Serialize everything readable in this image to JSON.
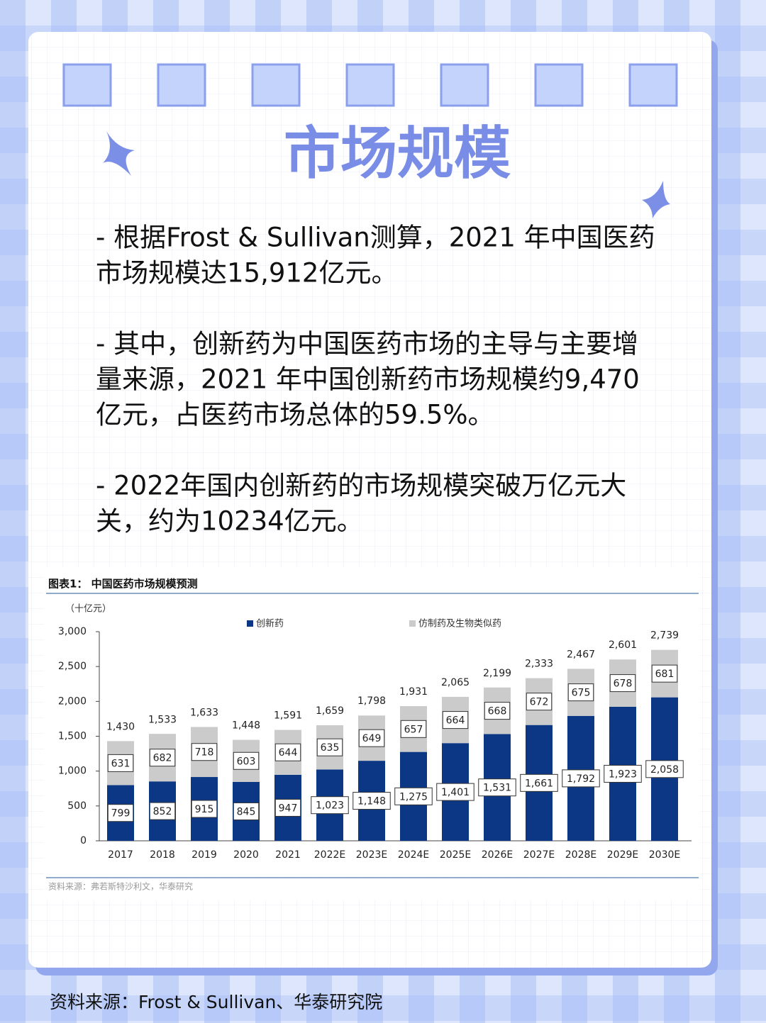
{
  "header": {
    "title": "市场规模"
  },
  "paragraphs": [
    [
      "- 根据Frost & Sullivan测算，2021 年中国医药",
      "市场规模达15,912亿元。"
    ],
    [
      "- 其中，创新药为中国医药市场的主导与主要增",
      "量来源，2021 年中国创新药市场规模约9,470",
      "亿元，占医药市场总体的59.5%。"
    ],
    [
      "- 2022年国内创新药的市场规模突破万亿元大",
      "关，约为10234亿元。"
    ]
  ],
  "chart_data": {
    "type": "stacked_bar",
    "title": "图表1：  中国医药市场规模预测",
    "unit": "（十亿元）",
    "source": "资料来源：弗若斯特沙利文，华泰研究",
    "categories": [
      "2017",
      "2018",
      "2019",
      "2020",
      "2021",
      "2022E",
      "2023E",
      "2024E",
      "2025E",
      "2026E",
      "2027E",
      "2028E",
      "2029E",
      "2030E"
    ],
    "series": [
      {
        "name": "创新药",
        "color": "#0c3784",
        "values": [
          799,
          852,
          915,
          845,
          947,
          1023,
          1148,
          1275,
          1401,
          1531,
          1661,
          1792,
          1923,
          2058
        ],
        "value_labels": [
          "799",
          "852",
          "915",
          "845",
          "947",
          "1,023",
          "1,148",
          "1,275",
          "1,401",
          "1,531",
          "1,661",
          "1,792",
          "1,923",
          "2,058"
        ]
      },
      {
        "name": "仿制药及生物类似药",
        "color": "#cbcbcb",
        "values": [
          631,
          682,
          718,
          603,
          644,
          635,
          649,
          657,
          664,
          668,
          672,
          675,
          678,
          681
        ],
        "value_labels": [
          "631",
          "682",
          "718",
          "603",
          "644",
          "635",
          "649",
          "657",
          "664",
          "668",
          "672",
          "675",
          "678",
          "681"
        ]
      }
    ],
    "totals": [
      1430,
      1533,
      1633,
      1448,
      1591,
      1659,
      1798,
      1931,
      2065,
      2199,
      2333,
      2467,
      2601,
      2739
    ],
    "total_labels": [
      "1,430",
      "1,533",
      "1,633",
      "1,448",
      "1,591",
      "1,659",
      "1,798",
      "1,931",
      "2,065",
      "2,199",
      "2,333",
      "2,467",
      "2,601",
      "2,739"
    ],
    "ylim": [
      0,
      3000
    ],
    "yticks": [
      0,
      500,
      {
        "value": 1000,
        "label": "1,000"
      },
      {
        "value": 1500,
        "label": "1,500"
      },
      {
        "value": 2000,
        "label": "2,000"
      },
      {
        "value": 2500,
        "label": "2,500"
      },
      {
        "value": 3000,
        "label": "3,000"
      }
    ]
  },
  "footer": {
    "source": "资料来源：Frost & Sullivan、华泰研究院"
  }
}
